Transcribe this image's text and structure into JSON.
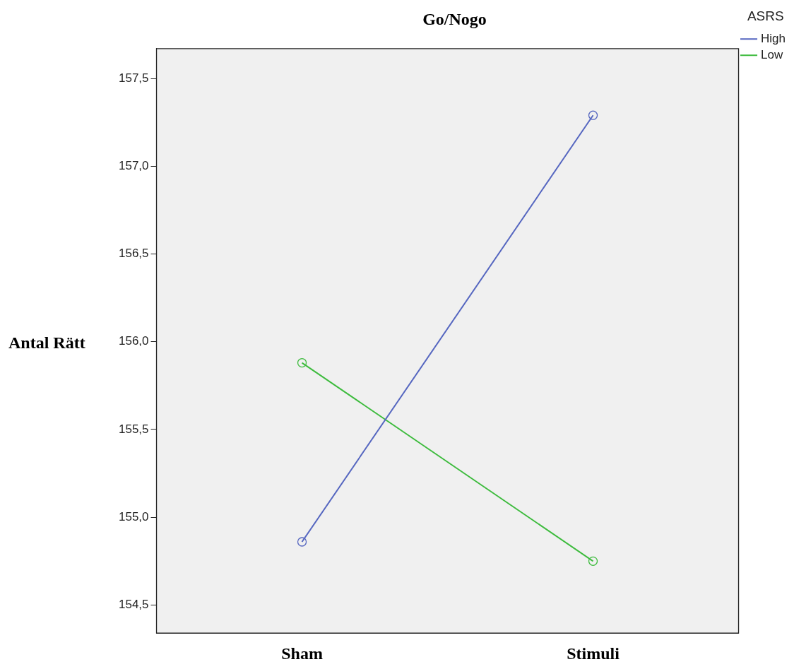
{
  "chart_data": {
    "type": "line",
    "title": "Go/Nogo",
    "ylabel": "Antal Rätt",
    "legend_title": "ASRS",
    "categories": [
      "Sham",
      "Stimuli"
    ],
    "series": [
      {
        "name": "High",
        "color": "#5566c0",
        "values": [
          154.86,
          157.29
        ]
      },
      {
        "name": "Low",
        "color": "#3dbb3d",
        "values": [
          155.88,
          154.75
        ]
      }
    ],
    "ylim": [
      154.34,
      157.67
    ],
    "yticks": [
      {
        "value": 154.5,
        "label": "154,5"
      },
      {
        "value": 155,
        "label": "155,0"
      },
      {
        "value": 155.5,
        "label": "155,5"
      },
      {
        "value": 156,
        "label": "156,0"
      },
      {
        "value": 156.5,
        "label": "156,5"
      },
      {
        "value": 157,
        "label": "157,0"
      },
      {
        "value": 157.5,
        "label": "157,5"
      }
    ],
    "grid": false,
    "legend": "top right",
    "marker": "circle",
    "line_style": "solid"
  }
}
